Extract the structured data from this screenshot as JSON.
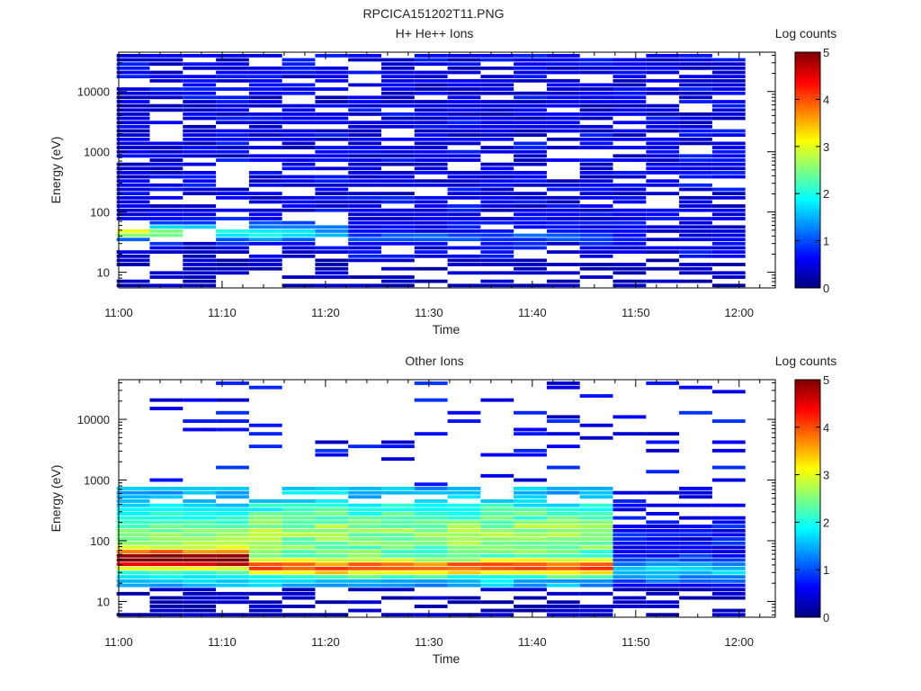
{
  "figure_title": "RPCICA151202T11.PNG",
  "colormap": [
    "#00007f",
    "#0000ff",
    "#007fff",
    "#00ffff",
    "#7fff7f",
    "#ffff00",
    "#ff7f00",
    "#ff0000",
    "#7f0000"
  ],
  "chart_data": [
    {
      "type": "heatmap",
      "title": "H+ He++ Ions",
      "xlabel": "Time",
      "ylabel": "Energy (eV)",
      "colorbar_label": "Log counts",
      "colorbar_range": [
        0,
        5
      ],
      "colorbar_ticks": [
        "0",
        "1",
        "2",
        "3",
        "4",
        "5"
      ],
      "x_ticks": [
        "11:00",
        "11:10",
        "11:20",
        "11:30",
        "11:40",
        "11:50",
        "12:00"
      ],
      "y_ticks": [
        "10",
        "100",
        "1000",
        "10000"
      ],
      "y_scale": "log",
      "ylim": [
        5.5,
        45000
      ],
      "xlim": [
        "11:00",
        "12:03.5"
      ],
      "time_bins": [
        "11:01.4",
        "11:04.6",
        "11:07.8",
        "11:11.0",
        "11:14.2",
        "11:17.4",
        "11:20.6",
        "11:23.8",
        "11:27.0",
        "11:30.2",
        "11:33.4",
        "11:36.6",
        "11:39.8",
        "11:43.0",
        "11:46.2",
        "11:49.4",
        "11:52.6",
        "11:55.8",
        "11:59.0"
      ],
      "energy_range_eV": [
        5.5,
        42000
      ],
      "energy_rows": 56,
      "color_scale": "log10 counts, 0 to 5",
      "peak_log_counts": 2.5,
      "features": [
        "broad low-level counts of about 0.3 to 0.8 across 10 eV to 40 keV",
        "enhanced counts of about 1 to 2.5 near 40 to 60 eV between 11:01 and 11:24"
      ]
    },
    {
      "type": "heatmap",
      "title": "Other Ions",
      "xlabel": "Time",
      "ylabel": "Energy (eV)",
      "colorbar_label": "Log counts",
      "colorbar_range": [
        0,
        5
      ],
      "colorbar_ticks": [
        "0",
        "1",
        "2",
        "3",
        "4",
        "5"
      ],
      "x_ticks": [
        "11:00",
        "11:10",
        "11:20",
        "11:30",
        "11:40",
        "11:50",
        "12:00"
      ],
      "y_ticks": [
        "10",
        "100",
        "1000",
        "10000"
      ],
      "y_scale": "log",
      "ylim": [
        5.5,
        45000
      ],
      "xlim": [
        "11:00",
        "12:03.5"
      ],
      "time_bins": [
        "11:01.4",
        "11:04.6",
        "11:07.8",
        "11:11.0",
        "11:14.2",
        "11:17.4",
        "11:20.6",
        "11:23.8",
        "11:27.0",
        "11:30.2",
        "11:33.4",
        "11:36.6",
        "11:39.8",
        "11:43.0",
        "11:46.2",
        "11:49.4",
        "11:52.6",
        "11:55.8",
        "11:59.0"
      ],
      "energy_range_eV": [
        5.5,
        42000
      ],
      "energy_rows": 56,
      "color_scale": "log10 counts, 0 to 5",
      "peak_log_counts": 4.6,
      "features": [
        "intense band of about 3.5 to 4.6 near 40 to 60 eV at 11:01 to 11:14",
        "band of about 2.5 to 3.5 near 30 to 50 eV from 11:15 to 11:48",
        "counts of about 1.5 to 2.5 from 60 eV up to about 700 eV before 11:48",
        "weaker counts of about 0.5 to 1.5 after 11:48",
        "sparse counts of about 0.5 above 1 keV"
      ]
    }
  ]
}
